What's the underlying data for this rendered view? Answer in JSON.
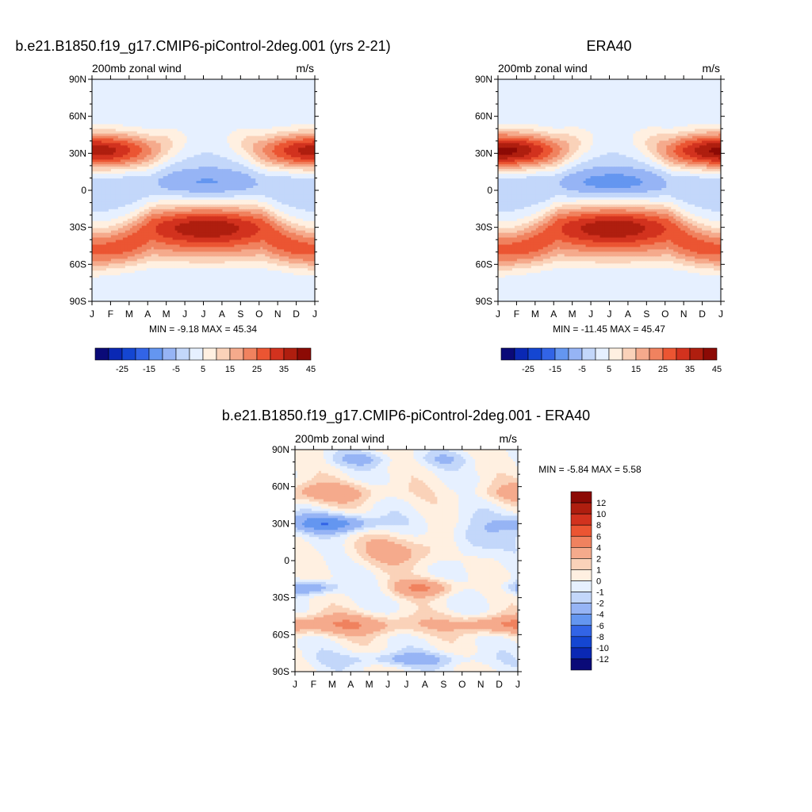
{
  "months": [
    "J",
    "F",
    "M",
    "A",
    "M",
    "J",
    "J",
    "A",
    "S",
    "O",
    "N",
    "D",
    "J"
  ],
  "lat_labels": [
    "90N",
    "60N",
    "30N",
    "0",
    "30S",
    "60S",
    "90S"
  ],
  "panels": [
    {
      "id": "model",
      "title": "b.e21.B1850.f19_g17.CMIP6-piControl-2deg.001 (yrs 2-21)",
      "left_label": "200mb zonal wind",
      "right_label": "m/s",
      "stats": "MIN =  -9.18 MAX =  45.34"
    },
    {
      "id": "obs",
      "title": "ERA40",
      "left_label": "200mb zonal wind",
      "right_label": "m/s",
      "stats": "MIN = -11.45 MAX =  45.47"
    },
    {
      "id": "diff",
      "title": "b.e21.B1850.f19_g17.CMIP6-piControl-2deg.001 - ERA40",
      "left_label": "200mb zonal wind",
      "right_label": "m/s",
      "stats": "MIN =  -5.84 MAX =   5.58"
    }
  ],
  "colorbar_main": {
    "labels": [
      "-25",
      "-15",
      "-5",
      "5",
      "15",
      "25",
      "35",
      "45"
    ],
    "colors": [
      "#0a0a78",
      "#0a28b4",
      "#1446d2",
      "#3264e6",
      "#6496f0",
      "#96b4f5",
      "#c3d7fa",
      "#e6f0ff",
      "#fff0e1",
      "#fad2b9",
      "#f5aa8c",
      "#f0825f",
      "#eb5532",
      "#d2321e",
      "#af1e0f",
      "#8c0a05"
    ]
  },
  "colorbar_diff": {
    "labels": [
      "12",
      "10",
      "8",
      "6",
      "4",
      "2",
      "1",
      "0",
      "-1",
      "-2",
      "-4",
      "-6",
      "-8",
      "-10",
      "-12"
    ],
    "colors": [
      "#8c0a05",
      "#af1e0f",
      "#d2321e",
      "#eb5532",
      "#f0825f",
      "#f5aa8c",
      "#fad2b9",
      "#fff0e1",
      "#e6f0ff",
      "#c3d7fa",
      "#96b4f5",
      "#6496f0",
      "#3264e6",
      "#1446d2",
      "#0a28b4",
      "#0a0a78"
    ]
  },
  "chart_data": [
    {
      "type": "heatmap",
      "title": "b.e21.B1850.f19_g17.CMIP6-piControl-2deg.001 (yrs 2-21)",
      "variable": "200mb zonal wind",
      "units": "m/s",
      "x_ticks": [
        "J",
        "F",
        "M",
        "A",
        "M",
        "J",
        "J",
        "A",
        "S",
        "O",
        "N",
        "D",
        "J"
      ],
      "y_ticks": [
        "90N",
        "60N",
        "30N",
        "0",
        "30S",
        "60S",
        "90S"
      ],
      "ylim": [
        -90,
        90
      ],
      "min": -9.18,
      "max": 45.34,
      "features": [
        {
          "lat": 30,
          "month": 1.5,
          "value": 40
        },
        {
          "lat": 30,
          "month": 12.0,
          "value": 38
        },
        {
          "lat": 5,
          "month": 7.5,
          "value": -8
        },
        {
          "lat": -28,
          "month": 7.5,
          "value": 45
        },
        {
          "lat": -50,
          "month": 1.0,
          "value": 34
        },
        {
          "lat": -55,
          "month": 10.0,
          "value": 30
        }
      ]
    },
    {
      "type": "heatmap",
      "title": "ERA40",
      "variable": "200mb zonal wind",
      "units": "m/s",
      "x_ticks": [
        "J",
        "F",
        "M",
        "A",
        "M",
        "J",
        "J",
        "A",
        "S",
        "O",
        "N",
        "D",
        "J"
      ],
      "y_ticks": [
        "90N",
        "60N",
        "30N",
        "0",
        "30S",
        "60S",
        "90S"
      ],
      "ylim": [
        -90,
        90
      ],
      "min": -11.45,
      "max": 45.47,
      "features": [
        {
          "lat": 30,
          "month": 1.5,
          "value": 45
        },
        {
          "lat": 30,
          "month": 12.5,
          "value": 42
        },
        {
          "lat": 5,
          "month": 7.5,
          "value": -11
        },
        {
          "lat": -28,
          "month": 7.5,
          "value": 38
        },
        {
          "lat": -50,
          "month": 1.0,
          "value": 32
        },
        {
          "lat": -50,
          "month": 11.0,
          "value": 30
        }
      ]
    },
    {
      "type": "heatmap",
      "title": "b.e21.B1850.f19_g17.CMIP6-piControl-2deg.001 - ERA40",
      "variable": "200mb zonal wind",
      "units": "m/s",
      "x_ticks": [
        "J",
        "F",
        "M",
        "A",
        "M",
        "J",
        "J",
        "A",
        "S",
        "O",
        "N",
        "D",
        "J"
      ],
      "y_ticks": [
        "90N",
        "60N",
        "30N",
        "0",
        "30S",
        "60S",
        "90S"
      ],
      "ylim": [
        -90,
        90
      ],
      "min": -5.84,
      "max": 5.58,
      "features": [
        {
          "lat": 30,
          "month": 3.0,
          "value": -5
        },
        {
          "lat": 55,
          "month": 3.0,
          "value": 3
        },
        {
          "lat": 10,
          "month": 7.0,
          "value": 3
        },
        {
          "lat": -20,
          "month": 2.0,
          "value": -4
        },
        {
          "lat": -22,
          "month": 8.0,
          "value": 4
        },
        {
          "lat": -52,
          "month": 4.0,
          "value": 4
        },
        {
          "lat": -80,
          "month": 7.0,
          "value": -2
        }
      ]
    }
  ]
}
